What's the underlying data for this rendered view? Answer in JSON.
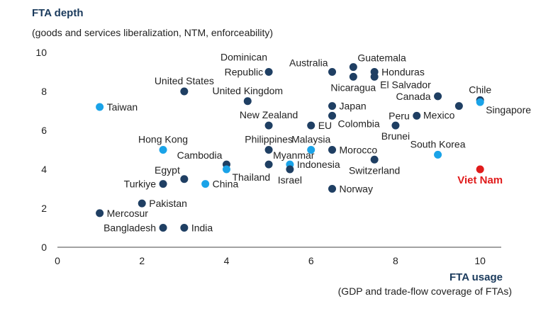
{
  "chart_data": {
    "type": "scatter",
    "ylabel": "FTA depth",
    "ylabel_sub": "(goods and services liberalization, NTM, enforceability)",
    "xlabel": "FTA usage",
    "xlabel_sub": "(GDP and trade-flow coverage of FTAs)",
    "xlim": [
      0,
      10.5
    ],
    "ylim": [
      0,
      10
    ],
    "xticks": [
      0,
      2,
      4,
      6,
      8,
      10
    ],
    "yticks": [
      0,
      2,
      4,
      6,
      8,
      10
    ],
    "colors": {
      "dark": "#1f3f63",
      "light": "#1aa3e8",
      "highlight": "#e01b1b",
      "axis": "#444444"
    },
    "points": [
      {
        "label": "Taiwan",
        "x": 1.0,
        "y": 7.2,
        "group": "light",
        "anchor": "right"
      },
      {
        "label": "Mercosur",
        "x": 1.0,
        "y": 1.75,
        "group": "dark",
        "anchor": "right"
      },
      {
        "label": "Pakistan",
        "x": 2.0,
        "y": 2.25,
        "group": "dark",
        "anchor": "right"
      },
      {
        "label": "Bangladesh",
        "x": 2.5,
        "y": 1.0,
        "group": "dark",
        "anchor": "left"
      },
      {
        "label": "Turkiye",
        "x": 2.5,
        "y": 3.25,
        "group": "dark",
        "anchor": "left"
      },
      {
        "label": "Hong Kong",
        "x": 2.5,
        "y": 5.0,
        "group": "light",
        "anchor": "above"
      },
      {
        "label": "United States",
        "x": 3.0,
        "y": 8.0,
        "group": "dark",
        "anchor": "above"
      },
      {
        "label": "Egypt",
        "x": 3.0,
        "y": 3.5,
        "group": "dark",
        "anchor": "above-left"
      },
      {
        "label": "India",
        "x": 3.0,
        "y": 1.0,
        "group": "dark",
        "anchor": "right"
      },
      {
        "label": "China",
        "x": 3.5,
        "y": 3.25,
        "group": "light",
        "anchor": "right"
      },
      {
        "label": "Cambodia",
        "x": 4.0,
        "y": 4.25,
        "group": "dark",
        "anchor": "above-left"
      },
      {
        "label": "Thailand",
        "x": 4.0,
        "y": 4.0,
        "group": "light",
        "anchor": "below-right"
      },
      {
        "label": "United Kingdom",
        "x": 4.5,
        "y": 7.5,
        "group": "dark",
        "anchor": "above"
      },
      {
        "label": "Dominican",
        "x": 5.0,
        "y": 9.0,
        "group": "dark",
        "anchor": "label-only"
      },
      {
        "label": "Republic",
        "x": 5.0,
        "y": 9.0,
        "group": "dark",
        "anchor": "left"
      },
      {
        "label": "New Zealand",
        "x": 5.0,
        "y": 6.25,
        "group": "dark",
        "anchor": "above"
      },
      {
        "label": "Philippines",
        "x": 5.0,
        "y": 5.0,
        "group": "dark",
        "anchor": "above"
      },
      {
        "label": "Myanmar",
        "x": 5.0,
        "y": 4.25,
        "group": "dark",
        "anchor": "above-right"
      },
      {
        "label": "Indonesia",
        "x": 5.5,
        "y": 4.25,
        "group": "light",
        "anchor": "right"
      },
      {
        "label": "Israel",
        "x": 5.5,
        "y": 4.0,
        "group": "dark",
        "anchor": "below"
      },
      {
        "label": "EU",
        "x": 6.0,
        "y": 6.25,
        "group": "dark",
        "anchor": "right"
      },
      {
        "label": "Malaysia",
        "x": 6.0,
        "y": 5.0,
        "group": "light",
        "anchor": "above"
      },
      {
        "label": "Australia",
        "x": 6.5,
        "y": 9.0,
        "group": "dark",
        "anchor": "above-left"
      },
      {
        "label": "Japan",
        "x": 6.5,
        "y": 7.25,
        "group": "dark",
        "anchor": "right"
      },
      {
        "label": "Colombia",
        "x": 6.5,
        "y": 6.75,
        "group": "dark",
        "anchor": "below-right"
      },
      {
        "label": "Morocco",
        "x": 6.5,
        "y": 5.0,
        "group": "dark",
        "anchor": "right"
      },
      {
        "label": "Norway",
        "x": 6.5,
        "y": 3.0,
        "group": "dark",
        "anchor": "right"
      },
      {
        "label": "Guatemala",
        "x": 7.0,
        "y": 9.25,
        "group": "dark",
        "anchor": "above-right"
      },
      {
        "label": "Nicaragua",
        "x": 7.0,
        "y": 8.75,
        "group": "dark",
        "anchor": "below"
      },
      {
        "label": "Honduras",
        "x": 7.5,
        "y": 9.0,
        "group": "dark",
        "anchor": "right"
      },
      {
        "label": "El Salvador",
        "x": 7.5,
        "y": 8.75,
        "group": "dark",
        "anchor": "below-right"
      },
      {
        "label": "Switzerland",
        "x": 7.5,
        "y": 4.5,
        "group": "dark",
        "anchor": "below"
      },
      {
        "label": "Peru",
        "x": 8.5,
        "y": 6.75,
        "group": "dark",
        "anchor": "left"
      },
      {
        "label": "Brunei",
        "x": 8.0,
        "y": 6.25,
        "group": "dark",
        "anchor": "below"
      },
      {
        "label": "Canada",
        "x": 9.0,
        "y": 7.75,
        "group": "dark",
        "anchor": "left"
      },
      {
        "label": "South Korea",
        "x": 9.0,
        "y": 4.75,
        "group": "light",
        "anchor": "above"
      },
      {
        "label": "Mexico",
        "x": 9.5,
        "y": 7.25,
        "group": "dark",
        "anchor": "below-left"
      },
      {
        "label": "Chile",
        "x": 10.0,
        "y": 7.55,
        "group": "dark",
        "anchor": "above"
      },
      {
        "label": "Singapore",
        "x": 10.0,
        "y": 7.45,
        "group": "light",
        "anchor": "below-right"
      },
      {
        "label": "Viet Nam",
        "x": 10.0,
        "y": 4.0,
        "group": "highlight",
        "anchor": "below"
      }
    ]
  }
}
